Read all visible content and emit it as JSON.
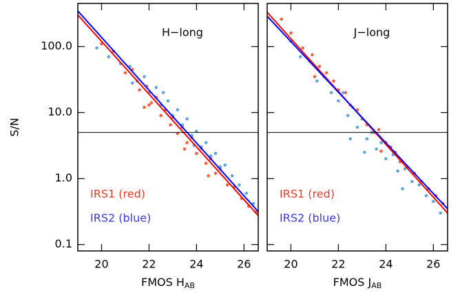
{
  "chart_data": [
    {
      "type": "scatter",
      "annotation": "H−long",
      "y_label": "S/N",
      "x_label": "FMOS H",
      "x_label_sub": "AB",
      "xlim": [
        19,
        26.6
      ],
      "xticks": [
        20,
        22,
        24,
        26
      ],
      "ylim": [
        0.08,
        450
      ],
      "log_y": true,
      "yticks": [
        {
          "value": 0.1,
          "label": "0.1"
        },
        {
          "value": 1,
          "label": "1.0"
        },
        {
          "value": 10,
          "label": "10.0"
        },
        {
          "value": 100,
          "label": "100.0"
        }
      ],
      "ytick_labels": true,
      "hline": 5,
      "legend": "lower left",
      "series": [
        {
          "name": "IRS1 (red)",
          "color": "#f2603c",
          "x": [
            20.0,
            20.5,
            21.0,
            21.3,
            21.6,
            21.9,
            22.1,
            22.3,
            22.5,
            22.7,
            22.9,
            23.0,
            23.2,
            23.4,
            23.6,
            23.8,
            24.0,
            24.2,
            24.4,
            24.6,
            24.8,
            25.0,
            25.3,
            25.6,
            25.9,
            26.2,
            26.5,
            22.0,
            23.5,
            24.5,
            21.8
          ],
          "values": [
            110,
            85,
            40,
            45,
            22,
            25,
            14,
            17,
            9,
            11,
            6.5,
            8.5,
            4.8,
            6,
            3.5,
            4.2,
            2.4,
            2.9,
            1.7,
            2.0,
            1.2,
            1.4,
            0.8,
            0.75,
            0.5,
            0.38,
            0.31,
            13,
            2.8,
            1.1,
            12
          ]
        },
        {
          "name": "IRS2 (blue)",
          "color": "#5ea6d8",
          "x": [
            19.8,
            20.3,
            20.8,
            21.2,
            21.5,
            21.8,
            22.0,
            22.3,
            22.5,
            22.8,
            23.0,
            23.2,
            23.4,
            23.6,
            23.8,
            24.0,
            24.2,
            24.4,
            24.6,
            24.8,
            25.0,
            25.2,
            25.5,
            25.8,
            26.1,
            26.4,
            22.6,
            23.9,
            21.3
          ],
          "values": [
            95,
            70,
            55,
            50,
            30,
            35,
            20,
            24,
            13,
            15,
            9,
            11,
            6.5,
            8,
            4.5,
            5.2,
            3,
            3.5,
            2.2,
            2.4,
            1.5,
            1.6,
            1.1,
            0.8,
            0.6,
            0.42,
            20,
            3.2,
            28
          ]
        }
      ],
      "fits": [
        {
          "color": "#ff0000",
          "x": [
            19,
            26.6
          ],
          "values": [
            301,
            0.275
          ]
        },
        {
          "color": "#0000ff",
          "x": [
            19,
            26.6
          ],
          "values": [
            346,
            0.315
          ]
        }
      ]
    },
    {
      "type": "scatter",
      "annotation": "J−long",
      "x_label": "FMOS J",
      "x_label_sub": "AB",
      "xlim": [
        19,
        26.6
      ],
      "xticks": [
        20,
        22,
        24,
        26
      ],
      "ylim": [
        0.08,
        450
      ],
      "log_y": true,
      "yticks": [
        0.1,
        1,
        10,
        100
      ],
      "ytick_labels": false,
      "hline": 5,
      "legend": "lower left",
      "series": [
        {
          "name": "IRS1 (red)",
          "color": "#f2603c",
          "x": [
            19.6,
            20.0,
            20.5,
            20.9,
            21.2,
            21.5,
            21.8,
            22.0,
            22.3,
            22.5,
            22.8,
            23.0,
            23.2,
            23.5,
            23.7,
            24.0,
            24.2,
            24.4,
            24.6,
            24.9,
            25.2,
            25.5,
            25.8,
            26.1,
            26.4,
            21.0,
            23.8
          ],
          "values": [
            260,
            160,
            95,
            75,
            50,
            40,
            30,
            22,
            20,
            13,
            11,
            8,
            6.5,
            5,
            5.5,
            3.5,
            3,
            2.5,
            1.8,
            1.5,
            1.2,
            0.9,
            0.7,
            0.55,
            0.42,
            35,
            2.6
          ]
        },
        {
          "name": "IRS2 (blue)",
          "color": "#5ea6d8",
          "x": [
            20.0,
            20.4,
            20.8,
            21.1,
            21.4,
            21.7,
            22.0,
            22.2,
            22.4,
            22.6,
            22.8,
            23.0,
            23.2,
            23.4,
            23.6,
            23.8,
            24.0,
            24.3,
            24.5,
            24.8,
            25.1,
            25.4,
            25.7,
            26.0,
            26.3,
            22.5,
            23.1,
            24.7
          ],
          "values": [
            120,
            70,
            60,
            30,
            35,
            20,
            15,
            20,
            9,
            12,
            6,
            8,
            4,
            5,
            2.8,
            3.5,
            2,
            2.3,
            1.3,
            1.4,
            0.9,
            0.8,
            0.55,
            0.45,
            0.3,
            4,
            2.5,
            0.7
          ]
        }
      ],
      "fits": [
        {
          "color": "#ff0000",
          "x": [
            19,
            26.6
          ],
          "values": [
            330,
            0.3
          ]
        },
        {
          "color": "#0000ff",
          "x": [
            19,
            26.6
          ],
          "values": [
            288,
            0.348
          ]
        }
      ]
    }
  ]
}
